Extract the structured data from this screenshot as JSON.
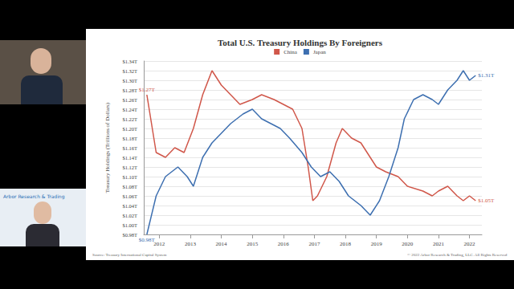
{
  "chart_data": {
    "type": "line",
    "title": "Total U.S. Treasury Holdings By Foreigners",
    "y_label": "Treasury Holdings (Trillions of Dollars)",
    "source": "Source: Treasury International Capital System",
    "copyright": "© 2022 Arbor Research & Trading, LLC. All Rights Reserved",
    "presenter_banner": "Arbor Research & Trading",
    "legend": "top",
    "grid": true,
    "xlim": [
      2011.5,
      2022.4
    ],
    "xticks": [
      2012,
      2013,
      2014,
      2015,
      2016,
      2017,
      2018,
      2019,
      2020,
      2021,
      2022
    ],
    "ylim": [
      0.98,
      1.34
    ],
    "yticks": [
      {
        "value": 0.98,
        "label": "$0.98T"
      },
      {
        "value": 1.0,
        "label": "$1.00T"
      },
      {
        "value": 1.02,
        "label": "$1.02T"
      },
      {
        "value": 1.04,
        "label": "$1.04T"
      },
      {
        "value": 1.06,
        "label": "$1.06T"
      },
      {
        "value": 1.08,
        "label": "$1.08T"
      },
      {
        "value": 1.1,
        "label": "$1.10T"
      },
      {
        "value": 1.12,
        "label": "$1.12T"
      },
      {
        "value": 1.14,
        "label": "$1.14T"
      },
      {
        "value": 1.16,
        "label": "$1.16T"
      },
      {
        "value": 1.18,
        "label": "$1.18T"
      },
      {
        "value": 1.2,
        "label": "$1.20T"
      },
      {
        "value": 1.22,
        "label": "$1.22T"
      },
      {
        "value": 1.24,
        "label": "$1.24T"
      },
      {
        "value": 1.26,
        "label": "$1.26T"
      },
      {
        "value": 1.28,
        "label": "$1.28T"
      },
      {
        "value": 1.3,
        "label": "$1.30T"
      },
      {
        "value": 1.32,
        "label": "$1.32T"
      },
      {
        "value": 1.34,
        "label": "$1.34T"
      }
    ],
    "series": [
      {
        "name": "China",
        "color": "#d0574a",
        "x": [
          2011.6,
          2011.9,
          2012.2,
          2012.5,
          2012.8,
          2013.1,
          2013.4,
          2013.7,
          2014.0,
          2014.3,
          2014.6,
          2015.0,
          2015.3,
          2015.7,
          2016.0,
          2016.3,
          2016.6,
          2016.8,
          2016.95,
          2017.1,
          2017.4,
          2017.7,
          2017.9,
          2018.2,
          2018.5,
          2018.8,
          2019.0,
          2019.3,
          2019.7,
          2020.0,
          2020.5,
          2020.8,
          2021.0,
          2021.3,
          2021.6,
          2021.8,
          2022.0,
          2022.2
        ],
        "values": [
          1.27,
          1.15,
          1.14,
          1.16,
          1.15,
          1.2,
          1.27,
          1.32,
          1.29,
          1.27,
          1.25,
          1.26,
          1.27,
          1.26,
          1.25,
          1.24,
          1.2,
          1.12,
          1.05,
          1.06,
          1.1,
          1.17,
          1.2,
          1.18,
          1.17,
          1.14,
          1.12,
          1.11,
          1.1,
          1.08,
          1.07,
          1.06,
          1.07,
          1.08,
          1.06,
          1.05,
          1.06,
          1.05
        ]
      },
      {
        "name": "Japan",
        "color": "#3d6fb0",
        "x": [
          2011.6,
          2011.9,
          2012.2,
          2012.6,
          2012.9,
          2013.1,
          2013.4,
          2013.7,
          2014.0,
          2014.3,
          2014.7,
          2015.0,
          2015.3,
          2015.6,
          2015.9,
          2016.2,
          2016.6,
          2016.9,
          2017.2,
          2017.5,
          2017.8,
          2018.1,
          2018.5,
          2018.8,
          2019.1,
          2019.4,
          2019.7,
          2019.9,
          2020.2,
          2020.5,
          2020.8,
          2021.0,
          2021.3,
          2021.6,
          2021.8,
          2022.0,
          2022.2
        ],
        "values": [
          0.98,
          1.06,
          1.1,
          1.12,
          1.1,
          1.08,
          1.14,
          1.17,
          1.19,
          1.21,
          1.23,
          1.24,
          1.22,
          1.21,
          1.2,
          1.18,
          1.15,
          1.12,
          1.1,
          1.11,
          1.09,
          1.06,
          1.04,
          1.02,
          1.05,
          1.1,
          1.16,
          1.22,
          1.26,
          1.27,
          1.26,
          1.25,
          1.28,
          1.3,
          1.32,
          1.3,
          1.31
        ]
      }
    ],
    "annotations": [
      {
        "series": "China",
        "x": 2011.6,
        "y": 1.27,
        "text": "$1.27T"
      },
      {
        "series": "China",
        "x": 2022.2,
        "y": 1.05,
        "text": "$1.05T"
      },
      {
        "series": "Japan",
        "x": 2011.6,
        "y": 0.98,
        "text": "$0.98T"
      },
      {
        "series": "Japan",
        "x": 2022.2,
        "y": 1.31,
        "text": "$1.31T"
      }
    ]
  }
}
